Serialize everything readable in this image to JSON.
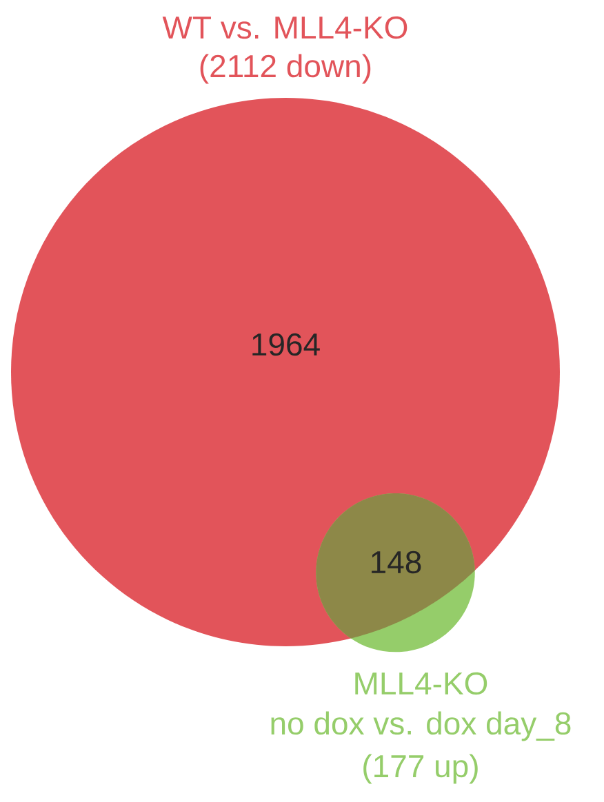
{
  "chart_data": {
    "type": "other",
    "values": [
      2112,
      177
    ],
    "value_labels": [
      "(2112 down)",
      "(177 up)"
    ],
    "colors": [
      "#e2545a",
      "#95cd6a"
    ],
    "annotations": [
      "WT vs. MLL4-KO",
      "MLL4-KO",
      "no dox vs. dox day_8",
      "1964",
      "148"
    ]
  }
}
